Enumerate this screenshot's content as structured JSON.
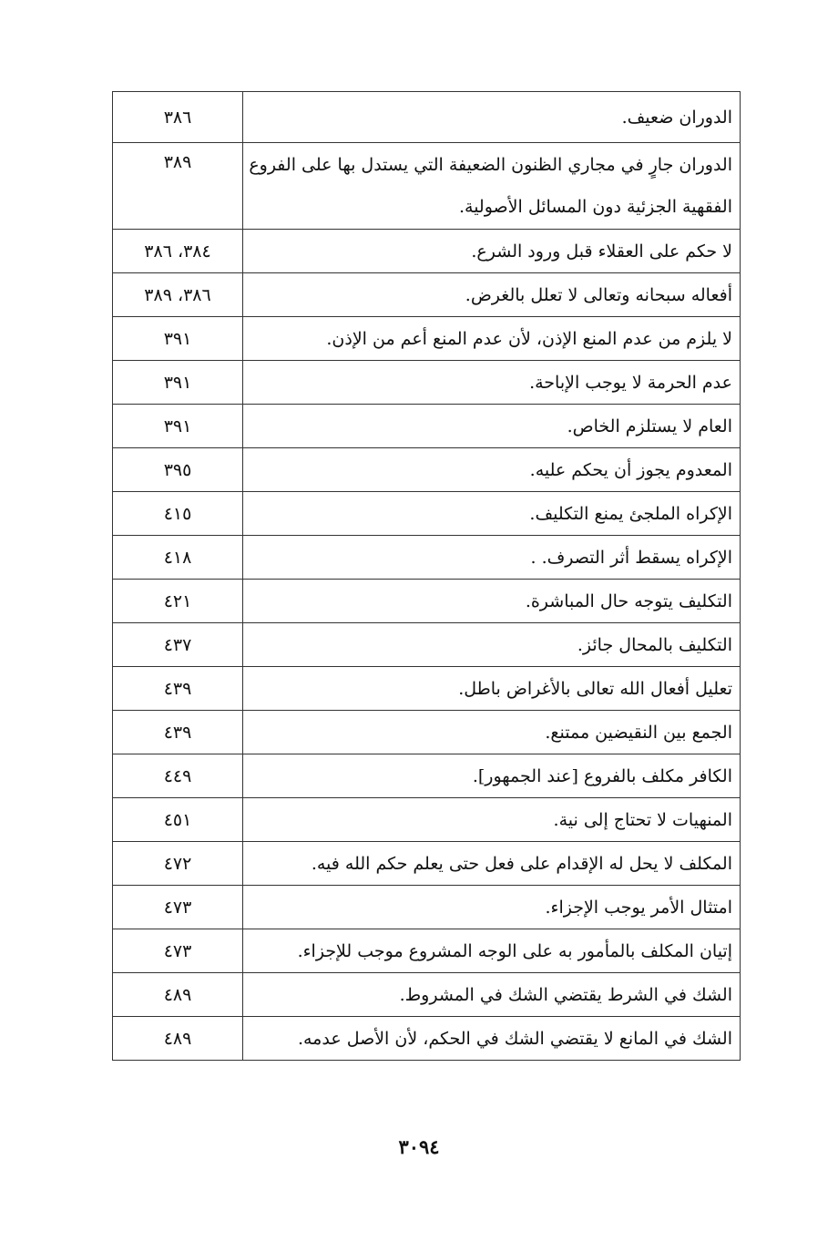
{
  "rows": [
    {
      "rule": "الدوران ضعيف.",
      "pages": "٣٨٦"
    },
    {
      "rule": "الدوران جارٍ في مجاري الظنون الضعيفة التي يستدل بها على الفروع الفقهية الجزئية دون المسائل الأصولية.",
      "pages": "٣٨٩"
    },
    {
      "rule": "لا حكم على العقلاء قبل ورود الشرع.",
      "pages": "٣٨٤، ٣٨٦"
    },
    {
      "rule": "أفعاله سبحانه وتعالى لا تعلل بالغرض.",
      "pages": "٣٨٦، ٣٨٩"
    },
    {
      "rule": "لا يلزم من عدم المنع الإذن، لأن عدم المنع أعم من الإذن.",
      "pages": "٣٩١"
    },
    {
      "rule": "عدم الحرمة لا يوجب الإباحة.",
      "pages": "٣٩١"
    },
    {
      "rule": "العام لا يستلزم الخاص.",
      "pages": "٣٩١"
    },
    {
      "rule": "المعدوم يجوز أن يحكم عليه.",
      "pages": "٣٩٥"
    },
    {
      "rule": "الإكراه الملجئ يمنع التكليف.",
      "pages": "٤١٥"
    },
    {
      "rule": "الإكراه يسقط أثر التصرف. .",
      "pages": "٤١٨"
    },
    {
      "rule": "التكليف يتوجه حال المباشرة.",
      "pages": "٤٢١"
    },
    {
      "rule": "التكليف بالمحال جائز.",
      "pages": "٤٣٧"
    },
    {
      "rule": "تعليل أفعال الله تعالى بالأغراض باطل.",
      "pages": "٤٣٩"
    },
    {
      "rule": "الجمع بين النقيضين ممتنع.",
      "pages": "٤٣٩"
    },
    {
      "rule": "الكافر مكلف بالفروع [عند الجمهور].",
      "pages": "٤٤٩"
    },
    {
      "rule": "المنهيات لا تحتاج إلى نية.",
      "pages": "٤٥١"
    },
    {
      "rule": "المكلف لا يحل له الإقدام على فعل حتى يعلم حكم الله فيه.",
      "pages": "٤٧٢"
    },
    {
      "rule": "امتثال الأمر يوجب الإجزاء.",
      "pages": "٤٧٣"
    },
    {
      "rule": "إتيان المكلف بالمأمور به على الوجه المشروع موجب للإجزاء.",
      "pages": "٤٧٣"
    },
    {
      "rule": "الشك في الشرط يقتضي الشك في المشروط.",
      "pages": "٤٨٩"
    },
    {
      "rule": "الشك في المانع لا يقتضي الشك في الحكم، لأن الأصل عدمه.",
      "pages": "٤٨٩"
    }
  ],
  "page_number": "٣٠٩٤"
}
